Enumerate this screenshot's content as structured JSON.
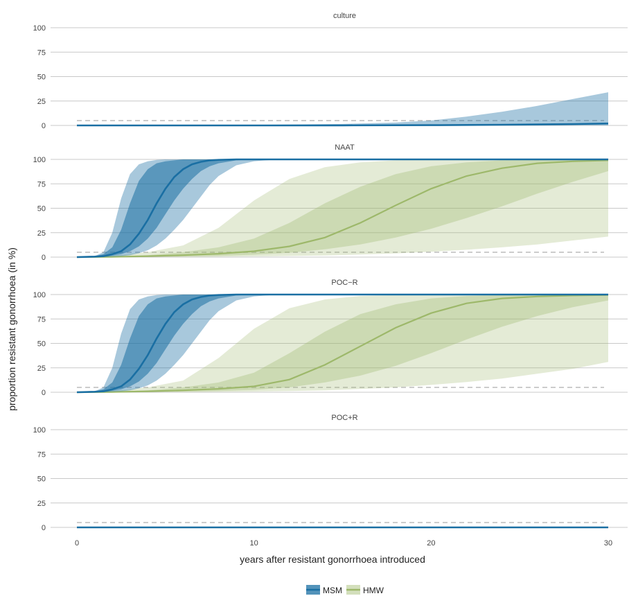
{
  "chart_data": {
    "type": "area",
    "ylabel": "proportion resistant gonorrhoea (in %)",
    "xlabel": "years after resistant gonorrhoea introduced",
    "xlim": [
      0,
      30
    ],
    "ylim": [
      0,
      100
    ],
    "xticks": [
      0,
      10,
      20,
      30
    ],
    "yticks": [
      0,
      25,
      50,
      75,
      100
    ],
    "threshold": 5,
    "colors": {
      "MSM": "#1a6fa3",
      "HMW": "#9db86a",
      "grid": "#c8c8c8",
      "threshold": "#cccccc"
    },
    "legend": {
      "placement": "bottom",
      "entries": [
        "MSM",
        "HMW"
      ]
    },
    "panels": [
      {
        "title": "culture",
        "series": [
          {
            "name": "MSM",
            "x": [
              0,
              5,
              10,
              15,
              18,
              20,
              22,
              24,
              26,
              28,
              30
            ],
            "median": [
              0,
              0,
              0,
              0.1,
              0.2,
              0.3,
              0.5,
              0.7,
              1,
              1.4,
              2
            ],
            "outer_low": [
              0,
              0,
              0,
              0,
              0,
              0,
              0,
              0,
              0,
              0,
              0
            ],
            "outer_high": [
              0,
              0.2,
              0.5,
              1.5,
              3,
              5,
              9,
              14,
              20,
              27,
              34
            ]
          }
        ]
      },
      {
        "title": "NAAT",
        "series": [
          {
            "name": "MSM",
            "x": [
              0,
              1,
              1.5,
              2,
              2.5,
              3,
              3.5,
              4,
              4.5,
              5,
              5.5,
              6,
              6.5,
              7,
              7.5,
              8,
              9,
              10,
              11,
              12,
              30
            ],
            "median": [
              0,
              0.5,
              1,
              3,
              6,
              13,
              24,
              38,
              55,
              70,
              82,
              90,
              95,
              97.5,
              99,
              99.5,
              100,
              100,
              100,
              100,
              100
            ],
            "inner_low": [
              0,
              0.3,
              0.5,
              1.5,
              3,
              6,
              11,
              19,
              30,
              44,
              58,
              70,
              80,
              88,
              93,
              96,
              99,
              100,
              100,
              100,
              100
            ],
            "inner_high": [
              0,
              1,
              3,
              10,
              28,
              55,
              78,
              90,
              96,
              98,
              99,
              100,
              100,
              100,
              100,
              100,
              100,
              100,
              100,
              100,
              100
            ],
            "outer_low": [
              0,
              0,
              0,
              0.5,
              1,
              2,
              4,
              7,
              12,
              19,
              28,
              38,
              50,
              62,
              74,
              83,
              94,
              98,
              99.5,
              100,
              100
            ],
            "outer_high": [
              0,
              1,
              5,
              25,
              60,
              85,
              95,
              98,
              99.5,
              100,
              100,
              100,
              100,
              100,
              100,
              100,
              100,
              100,
              100,
              100,
              100
            ]
          },
          {
            "name": "HMW",
            "x": [
              0,
              2,
              4,
              6,
              8,
              10,
              12,
              14,
              16,
              18,
              20,
              22,
              24,
              26,
              28,
              30
            ],
            "median": [
              0,
              0.3,
              1,
              2,
              3.5,
              6,
              11,
              20,
              35,
              53,
              70,
              83,
              91,
              96,
              98,
              99
            ],
            "inner_low": [
              0,
              0.1,
              0.3,
              0.7,
              1.3,
              2.5,
              4.5,
              8,
              13,
              20,
              29,
              40,
              52,
              65,
              77,
              88
            ],
            "inner_high": [
              0,
              0.6,
              2,
              5,
              10,
              19,
              35,
              55,
              72,
              85,
              93,
              97,
              99,
              99.5,
              100,
              100
            ],
            "outer_low": [
              0,
              0,
              0.1,
              0.2,
              0.4,
              0.7,
              1.1,
              1.7,
              2.6,
              3.8,
              5.5,
              7.5,
              10,
              13,
              17,
              21
            ],
            "outer_high": [
              0,
              1.5,
              5,
              12,
              30,
              58,
              80,
              92,
              97,
              99,
              100,
              100,
              100,
              100,
              100,
              100
            ]
          }
        ]
      },
      {
        "title": "POC−R",
        "series": [
          {
            "name": "MSM",
            "x": [
              0,
              1,
              1.5,
              2,
              2.5,
              3,
              3.5,
              4,
              4.5,
              5,
              5.5,
              6,
              6.5,
              7,
              7.5,
              8,
              9,
              10,
              11,
              12,
              30
            ],
            "median": [
              0,
              0.5,
              1,
              3,
              6,
              13,
              24,
              38,
              55,
              70,
              82,
              90,
              95,
              97.5,
              99,
              99.5,
              100,
              100,
              100,
              100,
              100
            ],
            "inner_low": [
              0,
              0.3,
              0.5,
              1.5,
              3,
              6,
              11,
              19,
              30,
              44,
              58,
              70,
              80,
              88,
              93,
              96,
              99,
              100,
              100,
              100,
              100
            ],
            "inner_high": [
              0,
              1,
              3,
              10,
              28,
              55,
              78,
              90,
              96,
              98,
              99,
              100,
              100,
              100,
              100,
              100,
              100,
              100,
              100,
              100,
              100
            ],
            "outer_low": [
              0,
              0,
              0,
              0.5,
              1,
              2,
              4,
              7,
              12,
              19,
              28,
              38,
              50,
              62,
              74,
              83,
              94,
              98,
              99.5,
              100,
              100
            ],
            "outer_high": [
              0,
              1,
              5,
              25,
              60,
              85,
              95,
              98,
              99.5,
              100,
              100,
              100,
              100,
              100,
              100,
              100,
              100,
              100,
              100,
              100,
              100
            ]
          },
          {
            "name": "HMW",
            "x": [
              0,
              2,
              4,
              6,
              8,
              10,
              12,
              14,
              16,
              18,
              20,
              22,
              24,
              26,
              28,
              30
            ],
            "median": [
              0,
              0.3,
              1,
              2,
              3.5,
              6,
              13,
              28,
              47,
              66,
              81,
              91,
              96,
              98,
              99,
              99.5
            ],
            "inner_low": [
              0,
              0.1,
              0.3,
              0.7,
              1.3,
              2.5,
              5,
              10,
              17,
              27,
              40,
              54,
              67,
              78,
              87,
              94
            ],
            "inner_high": [
              0,
              0.6,
              2,
              5,
              10,
              20,
              40,
              62,
              80,
              90,
              96,
              98.5,
              99.5,
              100,
              100,
              100
            ],
            "outer_low": [
              0,
              0,
              0.1,
              0.2,
              0.4,
              0.7,
              1.2,
              2,
              3.3,
              5,
              7.5,
              10.5,
              14,
              19,
              24,
              31
            ],
            "outer_high": [
              0,
              1.5,
              5,
              12,
              35,
              65,
              86,
              95,
              98.5,
              99.5,
              100,
              100,
              100,
              100,
              100,
              100
            ]
          }
        ]
      },
      {
        "title": "POC+R",
        "series": [
          {
            "name": "MSM",
            "x": [
              0,
              30
            ],
            "median": [
              0,
              0
            ],
            "outer_low": [
              0,
              0
            ],
            "outer_high": [
              0,
              0
            ]
          }
        ]
      }
    ]
  }
}
